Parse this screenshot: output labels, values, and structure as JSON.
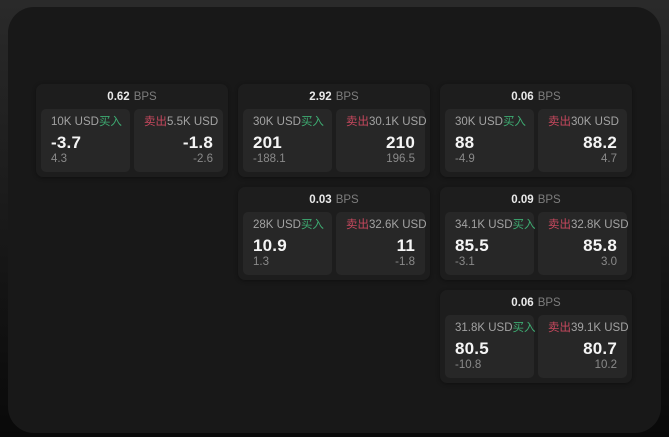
{
  "labels": {
    "buy": "买入",
    "sell": "卖出",
    "bps": "BPS"
  },
  "colors": {
    "buy": "#3eac72",
    "sell": "#c7485e",
    "window": "#181818",
    "card": "#1d1d1d",
    "panel": "#272727"
  },
  "cards": [
    {
      "col": 1,
      "row": 1,
      "bps": "0.62",
      "buy": {
        "size": "10K USD",
        "value": "-3.7",
        "delta": "4.3"
      },
      "sell": {
        "size": "5.5K USD",
        "value": "-1.8",
        "delta": "-2.6"
      }
    },
    {
      "col": 2,
      "row": 1,
      "bps": "2.92",
      "buy": {
        "size": "30K USD",
        "value": "201",
        "delta": "-188.1"
      },
      "sell": {
        "size": "30.1K USD",
        "value": "210",
        "delta": "196.5"
      }
    },
    {
      "col": 3,
      "row": 1,
      "bps": "0.06",
      "buy": {
        "size": "30K USD",
        "value": "88",
        "delta": "-4.9"
      },
      "sell": {
        "size": "30K USD",
        "value": "88.2",
        "delta": "4.7"
      }
    },
    {
      "col": 2,
      "row": 2,
      "bps": "0.03",
      "buy": {
        "size": "28K USD",
        "value": "10.9",
        "delta": "1.3"
      },
      "sell": {
        "size": "32.6K USD",
        "value": "11",
        "delta": "-1.8"
      }
    },
    {
      "col": 3,
      "row": 2,
      "bps": "0.09",
      "buy": {
        "size": "34.1K USD",
        "value": "85.5",
        "delta": "-3.1"
      },
      "sell": {
        "size": "32.8K USD",
        "value": "85.8",
        "delta": "3.0"
      }
    },
    {
      "col": 3,
      "row": 3,
      "bps": "0.06",
      "buy": {
        "size": "31.8K USD",
        "value": "80.5",
        "delta": "-10.8"
      },
      "sell": {
        "size": "39.1K USD",
        "value": "80.7",
        "delta": "10.2"
      }
    }
  ]
}
